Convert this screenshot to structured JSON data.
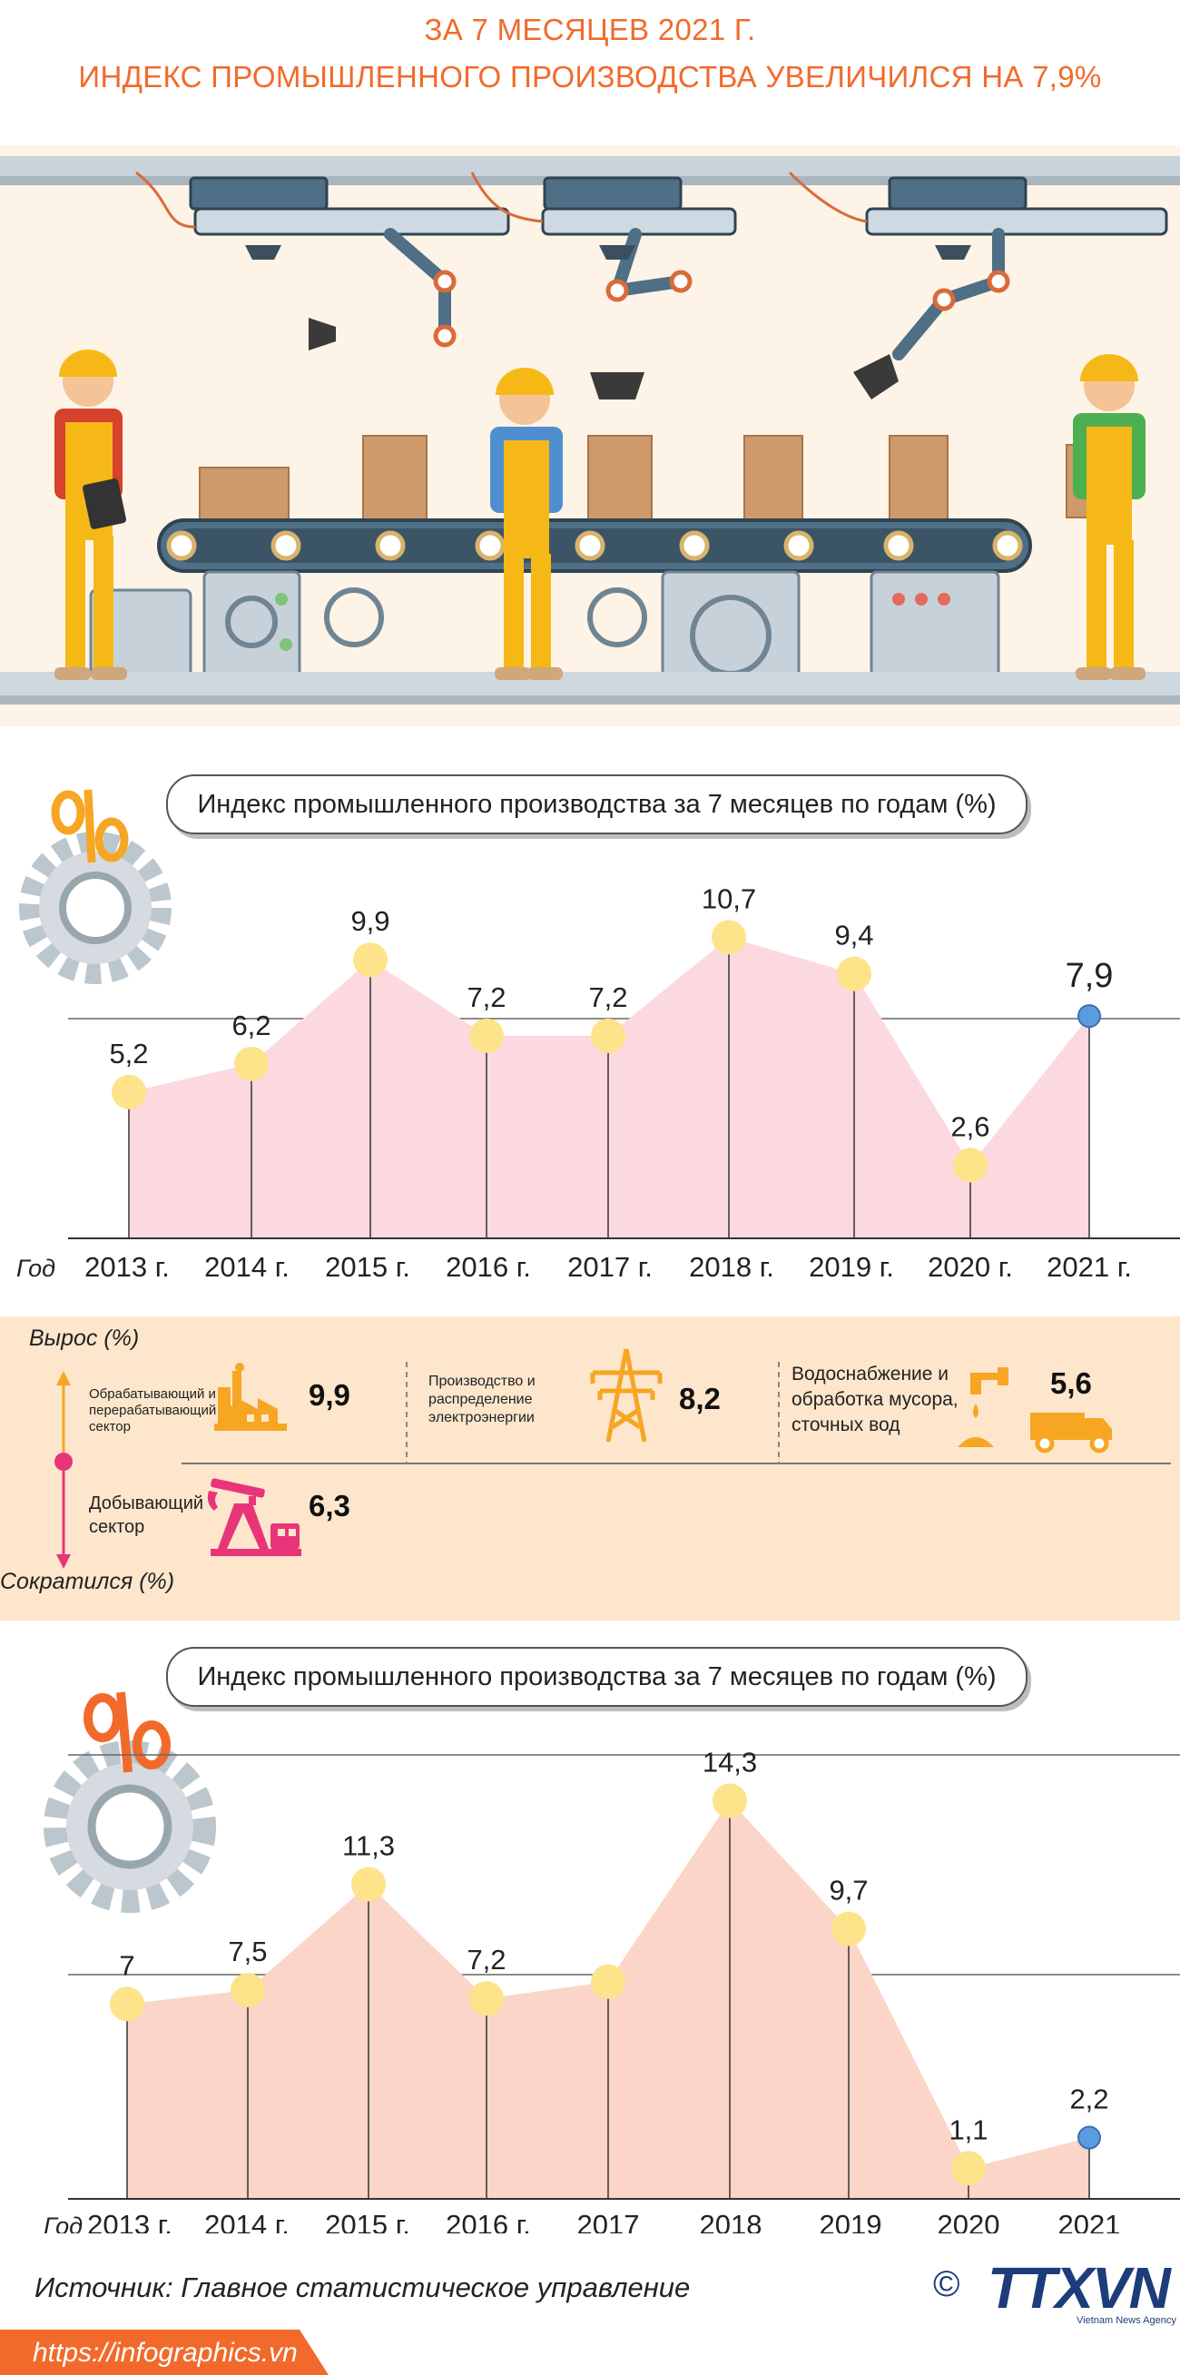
{
  "header": {
    "line1": "ЗА 7 МЕСЯЦЕВ 2021 Г.",
    "line2": "ИНДЕКС ПРОМЫШЛЕННОГО ПРОИЗВОДСТВА УВЕЛИЧИЛСЯ НА  7,9%"
  },
  "chart_data": [
    {
      "type": "area",
      "title": "Индекс промышленного производства за 7 месяцев по годам (%)",
      "xlabel": "Год",
      "categories": [
        "2013 г.",
        "2014 г.",
        "2015 г.",
        "2016 г.",
        "2017 г.",
        "2018 г.",
        "2019 г.",
        "2020 г.",
        "2021 г."
      ],
      "values": [
        5.2,
        6.2,
        9.9,
        7.2,
        7.2,
        10.7,
        9.4,
        2.6,
        7.9
      ],
      "value_labels": [
        "5,2",
        "6,2",
        "9,9",
        "7,2",
        "7,2",
        "10,7",
        "9,4",
        "2,6",
        "7,9"
      ],
      "highlight_last": true,
      "colors": {
        "fill": "#fcd9df",
        "point": "#fde38a",
        "highlight": "#5d9be0"
      },
      "grid": true
    },
    {
      "type": "area",
      "title": "Индекс промышленного производства за 7 месяцев по годам (%)",
      "xlabel": "Год",
      "categories": [
        "2013 г.",
        "2014 г.",
        "2015 г.",
        "2016 г.",
        "2017",
        "2018",
        "2019",
        "2020",
        "2021"
      ],
      "values": [
        7.0,
        7.5,
        11.3,
        7.2,
        7.8,
        14.3,
        9.7,
        1.1,
        2.2
      ],
      "value_labels": [
        "7",
        "7,5",
        "11,3",
        "7,2",
        "",
        "14,3",
        "9,7",
        "1,1",
        "2,2"
      ],
      "highlight_last": true,
      "colors": {
        "fill": "#fbd5c7",
        "point": "#fde38a",
        "highlight": "#5d9be0"
      },
      "grid": true
    }
  ],
  "sectors": {
    "growth_label": "Вырос (%)",
    "decline_label": "Сократился (%)",
    "items": [
      {
        "name": "Обрабатывающий и перерабатывающий сектор",
        "value": "9,9",
        "icon": "factory-icon"
      },
      {
        "name": "Производство и распределение электроэнергии",
        "value": "8,2",
        "icon": "power-tower-icon"
      },
      {
        "name": "Водоснабжение и обработка мусора, сточных вод",
        "value": "5,6",
        "icon": "water-tap-truck-icon"
      },
      {
        "name": "Добывающий сектор",
        "value": "6,3",
        "icon": "oil-pump-icon"
      }
    ]
  },
  "footer": {
    "source": "Источник: Главное статистическое управление",
    "url": "https://infographics.vn",
    "logo": "TTXVN",
    "logo_sub": "Vietnam News Agency",
    "copyright": "©"
  }
}
